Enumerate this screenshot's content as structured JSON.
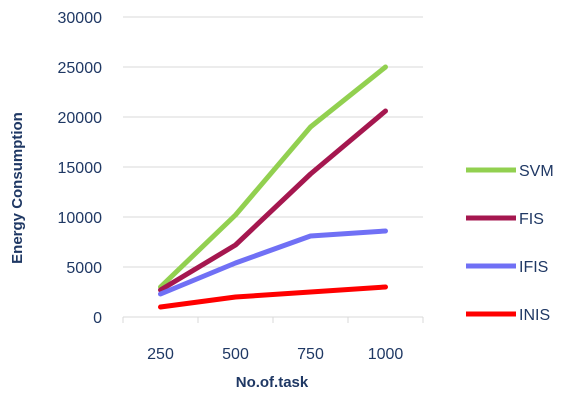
{
  "chart_data": {
    "type": "line",
    "title": "",
    "xlabel": "No.of.task",
    "ylabel": "Energy Consumption",
    "x": [
      "250",
      "500",
      "750",
      "1000"
    ],
    "ylim": [
      0,
      30000
    ],
    "yticks": [
      "0",
      "5000",
      "10000",
      "15000",
      "20000",
      "25000",
      "30000"
    ],
    "grid": "horizontal",
    "legend_position": "right",
    "series": [
      {
        "name": "SVM",
        "color": "#92d050",
        "values": [
          3000,
          10200,
          19000,
          25000
        ]
      },
      {
        "name": "FIS",
        "color": "#a5174f",
        "values": [
          2700,
          7200,
          14300,
          20600
        ]
      },
      {
        "name": "IFIS",
        "color": "#7070f5",
        "values": [
          2300,
          5400,
          8100,
          8600
        ]
      },
      {
        "name": "INIS",
        "color": "#ff0000",
        "values": [
          1000,
          2000,
          2500,
          3000
        ]
      }
    ]
  }
}
